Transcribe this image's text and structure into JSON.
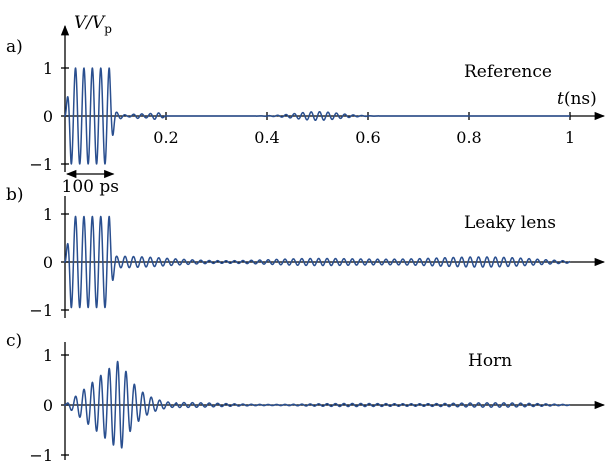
{
  "figure": {
    "ylabel_main": "V/V",
    "ylabel_sub": "p",
    "xlabel_main": "t",
    "xlabel_unit": "(ns)",
    "width_annotation": "100 ps"
  },
  "chart_data": [
    {
      "panel": "a)",
      "type": "line",
      "title": "Reference",
      "xlim": [
        0,
        1.05
      ],
      "ylim": [
        -1.2,
        1.2
      ],
      "x_ticks": [
        0.2,
        0.4,
        0.6,
        0.8,
        1
      ],
      "x_tick_labels": [
        "0.2",
        "0.4",
        "0.6",
        "0.8",
        "1"
      ],
      "y_ticks": [
        1,
        0,
        -1
      ],
      "y_tick_labels": [
        "1",
        "0",
        "−1"
      ],
      "annotation": {
        "text": "100 ps",
        "x_start": 0.0,
        "x_end": 0.1
      },
      "series": [
        {
          "color": "#2a4f8f",
          "components": [
            {
              "kind": "pulse",
              "amplitude": 1.0,
              "t_start": 0.0,
              "t_end": 0.1,
              "freq_ghz": 60
            },
            {
              "kind": "ripple",
              "amplitude": 0.08,
              "t_start": 0.1,
              "t_end": 0.2,
              "freq_ghz": 60
            },
            {
              "kind": "echo",
              "amplitude": 0.09,
              "t_center": 0.5,
              "t_width": 0.12,
              "freq_ghz": 60
            }
          ]
        }
      ]
    },
    {
      "panel": "b)",
      "type": "line",
      "title": "Leaky lens",
      "xlim": [
        0,
        1.05
      ],
      "ylim": [
        -1.2,
        1.2
      ],
      "y_ticks": [
        1,
        0,
        -1
      ],
      "y_tick_labels": [
        "1",
        "0",
        "−1"
      ],
      "series": [
        {
          "color": "#2a4f8f",
          "components": [
            {
              "kind": "pulse",
              "amplitude": 0.95,
              "t_start": 0.0,
              "t_end": 0.1,
              "freq_ghz": 60
            },
            {
              "kind": "ripple",
              "amplitude": 0.12,
              "t_start": 0.1,
              "t_end": 1.0,
              "freq_ghz": 60
            }
          ]
        }
      ]
    },
    {
      "panel": "c)",
      "type": "line",
      "title": "Horn",
      "xlim": [
        0,
        1.05
      ],
      "ylim": [
        -1.2,
        1.2
      ],
      "y_ticks": [
        1,
        0,
        -1
      ],
      "y_tick_labels": [
        "1",
        "0",
        "−1"
      ],
      "series": [
        {
          "color": "#2a4f8f",
          "components": [
            {
              "kind": "chirp",
              "amplitude": 0.92,
              "t_start": 0.0,
              "t_peak": 0.11,
              "t_end": 0.22,
              "freq_ghz": 60
            },
            {
              "kind": "ripple",
              "amplitude": 0.05,
              "t_start": 0.22,
              "t_end": 1.0,
              "freq_ghz": 60
            }
          ]
        }
      ]
    }
  ]
}
